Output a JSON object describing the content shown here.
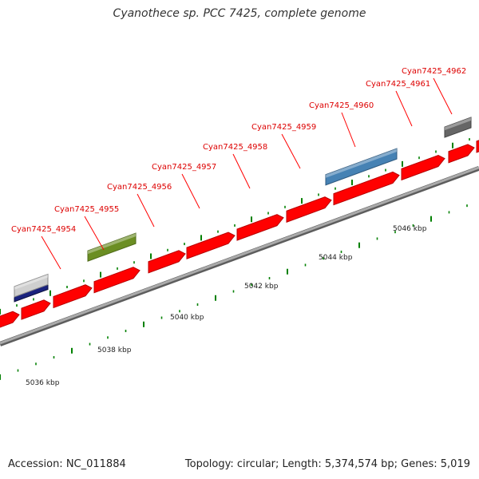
{
  "header": {
    "title": "Cyanothece sp. PCC 7425, complete genome"
  },
  "footer": {
    "accession": "Accession: NC_011884",
    "summary": "Topology: circular; Length: 5,374,574 bp; Genes: 5,019"
  },
  "genes": [
    {
      "label": "Cyan7425_4954",
      "color": "#6b8e23"
    },
    {
      "label": "Cyan7425_4955",
      "color": "#ff0000"
    },
    {
      "label": "Cyan7425_4956",
      "color": "#ff0000"
    },
    {
      "label": "Cyan7425_4957",
      "color": "#ff0000"
    },
    {
      "label": "Cyan7425_4958",
      "color": "#ff0000"
    },
    {
      "label": "Cyan7425_4959",
      "color": "#ff0000"
    },
    {
      "label": "Cyan7425_4960",
      "color": "#4682b4"
    },
    {
      "label": "Cyan7425_4961",
      "color": "#ff0000"
    },
    {
      "label": "Cyan7425_4962",
      "color": "#666666"
    }
  ],
  "scale": {
    "tick_labels": [
      "5036 kbp",
      "5038 kbp",
      "5040 kbp",
      "5042 kbp",
      "5044 kbp",
      "5046 kbp"
    ]
  },
  "colors": {
    "cds": "#ff0000",
    "label_text": "#dd0000",
    "leader_line": "#ff0000",
    "tick": "#008000",
    "backbone": "#999999"
  }
}
